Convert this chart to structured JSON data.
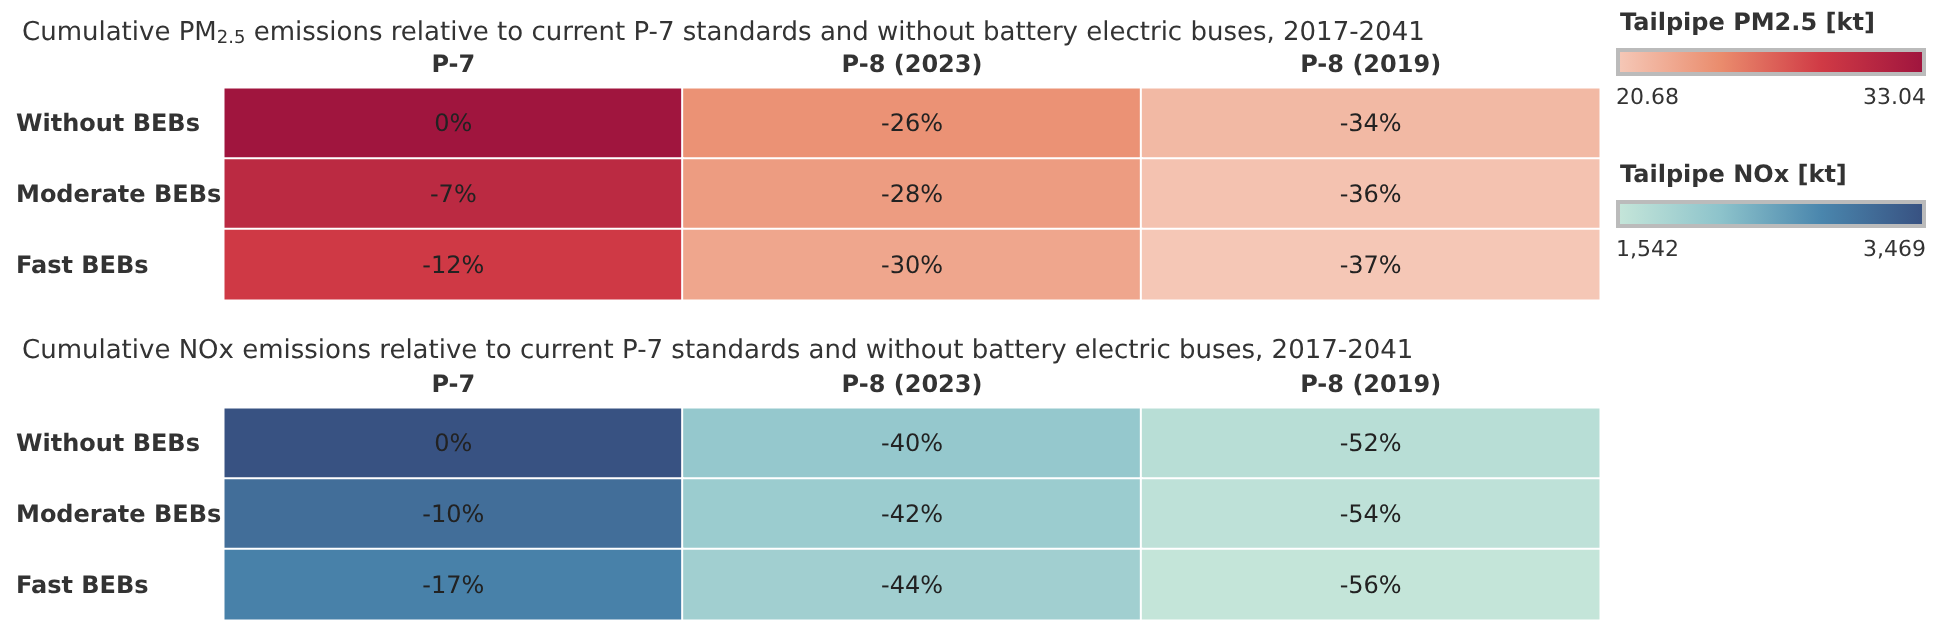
{
  "chart_data": [
    {
      "type": "heatmap",
      "title": "Cumulative PM$_{2.5}$ emissions relative to current P-7 standards and without battery electric buses, 2017-2041",
      "categories": [
        "P-7",
        "P-8 (2023)",
        "P-8 (2019)"
      ],
      "y_categories": [
        "Without BEBs",
        "Moderate BEBs",
        "Fast BEBs"
      ],
      "cells": [
        [
          0,
          -26,
          -34
        ],
        [
          -7,
          -28,
          -36
        ],
        [
          -12,
          -30,
          -37
        ]
      ],
      "cell_labels": [
        [
          "0%",
          "-26%",
          "-34%"
        ],
        [
          "-7%",
          "-28%",
          "-36%"
        ],
        [
          "-12%",
          "-30%",
          "-37%"
        ]
      ]
    },
    {
      "type": "heatmap",
      "title": "Cumulative NOx emissions relative to current P-7 standards and without battery electric buses, 2017-2041",
      "categories": [
        "P-7",
        "P-8 (2023)",
        "P-8 (2019)"
      ],
      "y_categories": [
        "Without BEBs",
        "Moderate BEBs",
        "Fast BEBs"
      ],
      "cells": [
        [
          0,
          -40,
          -52
        ],
        [
          -10,
          -42,
          -54
        ],
        [
          -17,
          -44,
          -56
        ]
      ],
      "cell_labels": [
        [
          "0%",
          "-40%",
          "-52%"
        ],
        [
          "-10%",
          "-42%",
          "-54%"
        ],
        [
          "-17%",
          "-44%",
          "-56%"
        ]
      ]
    },
    {
      "type": "other",
      "title": "Tailpipe PM2.5 [kt]",
      "annotations": [
        "20.68",
        "33.04"
      ]
    },
    {
      "type": "other",
      "title": "Tailpipe NOx [kt]",
      "annotations": [
        "1,542",
        "3,469"
      ]
    }
  ]
}
